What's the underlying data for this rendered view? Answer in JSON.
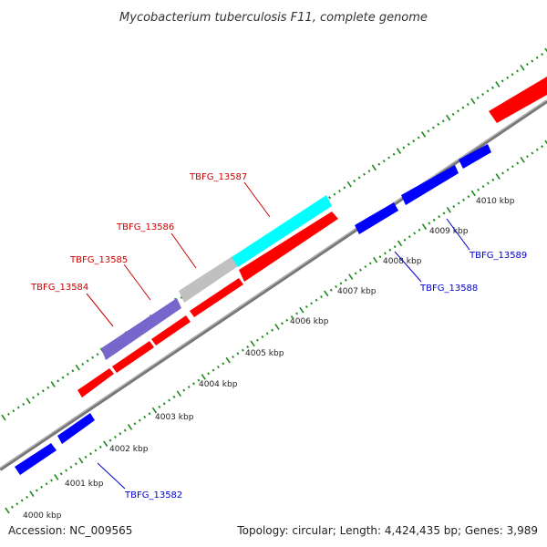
{
  "map": {
    "title": "Mycobacterium tuberculosis F11, complete genome",
    "accession": "Accession: NC_009565",
    "summary": "Topology: circular; Length: 4,424,435 bp; Genes: 3,989",
    "kbp_ticks": [
      "4000 kbp",
      "4001 kbp",
      "4002 kbp",
      "4003 kbp",
      "4004 kbp",
      "4005 kbp",
      "4006 kbp",
      "4007 kbp",
      "4008 kbp",
      "4009 kbp",
      "4010 kbp"
    ],
    "gene_labels": {
      "forward": [
        "TBFG_13584",
        "TBFG_13585",
        "TBFG_13586",
        "TBFG_13587"
      ],
      "reverse": [
        "TBFG_13582",
        "TBFG_13588",
        "TBFG_13589"
      ]
    },
    "colors": {
      "forward_gene": "#ff0000",
      "reverse_gene": "#0000ff",
      "forward_label": "#cc0000",
      "reverse_label": "#0000cc",
      "backbone": "#808080",
      "tick_marks": "#1a8a1a",
      "gene_purple": "#7766cc",
      "gene_grey": "#c0c0c0",
      "gene_cyan": "#00ffff"
    }
  }
}
